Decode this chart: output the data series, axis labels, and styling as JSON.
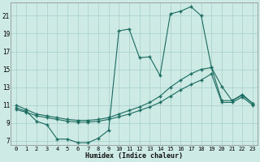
{
  "xlabel": "Humidex (Indice chaleur)",
  "bg_color": "#ceeae4",
  "grid_color": "#a8cfc8",
  "line_color": "#1a6b60",
  "xlim": [
    -0.5,
    23.5
  ],
  "ylim": [
    6.5,
    22.5
  ],
  "xticks": [
    0,
    1,
    2,
    3,
    4,
    5,
    6,
    7,
    8,
    9,
    10,
    11,
    12,
    13,
    14,
    15,
    16,
    17,
    18,
    19,
    20,
    21,
    22,
    23
  ],
  "yticks": [
    7,
    9,
    11,
    13,
    15,
    17,
    19,
    21
  ],
  "line1_x": [
    0,
    1,
    2,
    3,
    4,
    5,
    6,
    7,
    8,
    9,
    10,
    11,
    12,
    13,
    14,
    15,
    16,
    17,
    18,
    19,
    20,
    21,
    22,
    23
  ],
  "line1_y": [
    10.7,
    10.3,
    9.2,
    8.8,
    7.2,
    7.2,
    6.8,
    6.8,
    7.3,
    8.2,
    19.3,
    19.5,
    16.3,
    16.4,
    14.3,
    21.2,
    21.5,
    22.0,
    21.0,
    15.2,
    13.1,
    11.5,
    12.1,
    11.2
  ],
  "line2_x": [
    0,
    1,
    2,
    3,
    4,
    5,
    6,
    7,
    8,
    9,
    10,
    11,
    12,
    13,
    14,
    15,
    16,
    17,
    18,
    19,
    20,
    21,
    22,
    23
  ],
  "line2_y": [
    11.0,
    10.5,
    10.0,
    9.8,
    9.6,
    9.4,
    9.3,
    9.3,
    9.4,
    9.6,
    10.0,
    10.4,
    10.8,
    11.3,
    12.0,
    13.0,
    13.8,
    14.5,
    15.0,
    15.2,
    11.5,
    11.5,
    12.2,
    11.2
  ],
  "line3_x": [
    0,
    1,
    2,
    3,
    4,
    5,
    6,
    7,
    8,
    9,
    10,
    11,
    12,
    13,
    14,
    15,
    16,
    17,
    18,
    19,
    20,
    21,
    22,
    23
  ],
  "line3_y": [
    10.5,
    10.2,
    9.8,
    9.6,
    9.4,
    9.2,
    9.1,
    9.1,
    9.2,
    9.4,
    9.7,
    10.0,
    10.4,
    10.8,
    11.3,
    12.0,
    12.7,
    13.3,
    13.8,
    14.5,
    11.3,
    11.3,
    11.9,
    11.0
  ]
}
